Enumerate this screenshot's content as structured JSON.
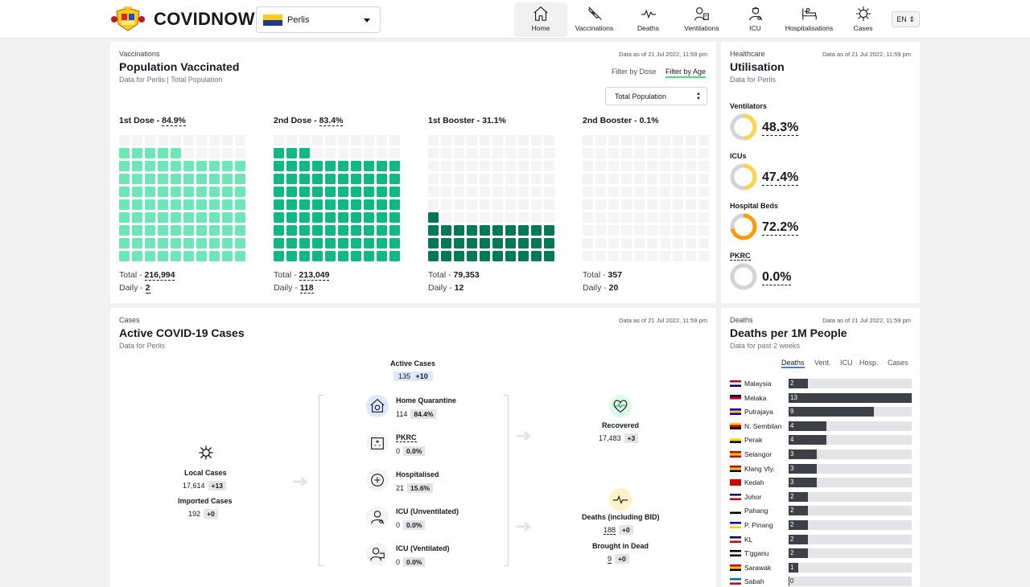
{
  "header": {
    "brand": "COVIDNOW",
    "state": "Perlis",
    "lang": "EN ⇕",
    "nav": [
      {
        "label": "Home",
        "icon": "home-icon",
        "active": true
      },
      {
        "label": "Vaccinations",
        "icon": "syringe-icon",
        "active": false
      },
      {
        "label": "Deaths",
        "icon": "pulse-icon",
        "active": false
      },
      {
        "label": "Ventilations",
        "icon": "ventilator-icon",
        "active": false
      },
      {
        "label": "ICU",
        "icon": "icu-icon",
        "active": false
      },
      {
        "label": "Hospitalisations",
        "icon": "hospital-bed-icon",
        "active": false
      },
      {
        "label": "Cases",
        "icon": "virus-icon",
        "active": false
      }
    ]
  },
  "vaccination": {
    "eyebrow": "Vaccinations",
    "title": "Population Vaccinated",
    "subtitle": "Data for Perlis | Total Population",
    "as_of": "Data as of 21 Jul 2022, 11:59 pm",
    "filter_dose": "Filter by Dose",
    "filter_age": "Filter by Age",
    "dropdown": "Total Population",
    "total_label": "Total - ",
    "daily_label": "Daily - ",
    "doses": [
      {
        "label": "1st Dose - ",
        "pct": "84.9%",
        "fill_pct": 84.9,
        "color": "#6ee7b7",
        "total": "216,994",
        "daily": "2",
        "underline": true
      },
      {
        "label": "2nd Dose - ",
        "pct": "83.4%",
        "fill_pct": 83.4,
        "color": "#10b981",
        "total": "213,049",
        "daily": "118",
        "underline": true
      },
      {
        "label": "1st Booster - ",
        "pct": "31.1%",
        "fill_pct": 31.1,
        "color": "#047857",
        "total": "79,353",
        "daily": "12",
        "underline": false
      },
      {
        "label": "2nd Booster - ",
        "pct": "0.1%",
        "fill_pct": 0.1,
        "color": "#064e3b",
        "total": "357",
        "daily": "20",
        "underline": false
      }
    ]
  },
  "utilisation": {
    "eyebrow": "Healthcare",
    "title": "Utilisation",
    "subtitle": "Data for Perlis",
    "as_of": "Data as of 21 Jul 2022, 11:59 pm",
    "items": [
      {
        "label": "Ventilators",
        "value": "48.3%",
        "pct": 48.3,
        "color": "#fcd34d"
      },
      {
        "label": "ICUs",
        "value": "47.4%",
        "pct": 47.4,
        "color": "#fcd34d"
      },
      {
        "label": "Hospital Beds",
        "value": "72.2%",
        "pct": 72.2,
        "color": "#f59e0b"
      },
      {
        "label": "PKRC",
        "value": "0.0%",
        "pct": 0,
        "color": "#d4d4d8"
      }
    ]
  },
  "cases": {
    "eyebrow": "Cases",
    "title": "Active COVID-19 Cases",
    "subtitle": "Data for Perlis",
    "as_of": "Data as of 21 Jul 2022, 11:59 pm",
    "active": {
      "label": "Active Cases",
      "value": "135",
      "delta": "+10"
    },
    "local": {
      "label": "Local Cases",
      "value": "17,614",
      "delta": "+13"
    },
    "imported": {
      "label": "Imported Cases",
      "value": "192",
      "delta": "+0"
    },
    "states": [
      {
        "label": "Home Quarantine",
        "value": "114",
        "pct": "84.4%",
        "icon": "home-quarantine-icon"
      },
      {
        "label": "PKRC",
        "value": "0",
        "pct": "0.0%",
        "icon": "pkrc-building-icon"
      },
      {
        "label": "Hospitalised",
        "value": "21",
        "pct": "15.6%",
        "icon": "medical-cross-icon"
      },
      {
        "label": "ICU (Unventilated)",
        "value": "0",
        "pct": "0.0%",
        "icon": "icu-doctor-icon"
      },
      {
        "label": "ICU (Ventilated)",
        "value": "0",
        "pct": "0.0%",
        "icon": "ventilated-patient-icon"
      }
    ],
    "recovered": {
      "label": "Recovered",
      "value": "17,483",
      "delta": "+3"
    },
    "deaths": {
      "label": "Deaths (including BID)",
      "value": "188",
      "delta": "+0"
    },
    "bid": {
      "label": "Brought in Dead",
      "value": "9",
      "delta": "+0"
    }
  },
  "deaths": {
    "eyebrow": "Deaths",
    "title": "Deaths per 1M People",
    "subtitle": "Data for past 2 weeks",
    "as_of": "Data as of 21 Jul 2022, 11:59 pm",
    "tabs": [
      "Deaths",
      "Vent.",
      "ICU",
      "Hosp.",
      "Cases"
    ],
    "chart_data": {
      "type": "bar",
      "categories": [
        "Malaysia",
        "Melaka",
        "Putrajaya",
        "N. Sembilan",
        "Perak",
        "Selangor",
        "Klang Vly.",
        "Kedah",
        "Johor",
        "Pahang",
        "P. Pinang",
        "KL",
        "T'gganu",
        "Sarawak",
        "Sabah"
      ],
      "values": [
        2,
        13,
        9,
        4,
        4,
        3,
        3,
        3,
        2,
        2,
        2,
        2,
        2,
        1,
        0
      ],
      "max": 13,
      "flags": [
        [
          "#cc0001",
          "#ffffff",
          "#010066"
        ],
        [
          "#010066",
          "#cc0001",
          "#ffffff"
        ],
        [
          "#0000cc",
          "#ffcc00",
          "#0000cc"
        ],
        [
          "#ffcc00",
          "#cc0000",
          "#000000"
        ],
        [
          "#ffffff",
          "#ffcc00",
          "#000000"
        ],
        [
          "#cc0000",
          "#ffcc00",
          "#cc0000"
        ],
        [
          "#cc0000",
          "#ffcc00",
          "#010066"
        ],
        [
          "#cc0000",
          "#cc0000",
          "#cc0000"
        ],
        [
          "#000080",
          "#ffffff",
          "#cc0000"
        ],
        [
          "#ffffff",
          "#ffffff",
          "#000000"
        ],
        [
          "#0000cc",
          "#ffffff",
          "#ffcc00"
        ],
        [
          "#010066",
          "#ffffff",
          "#cc0000"
        ],
        [
          "#000000",
          "#ffffff",
          "#000000"
        ],
        [
          "#cc0000",
          "#ffcc00",
          "#000000"
        ],
        [
          "#0066cc",
          "#ffffff",
          "#cc0000"
        ]
      ]
    }
  }
}
